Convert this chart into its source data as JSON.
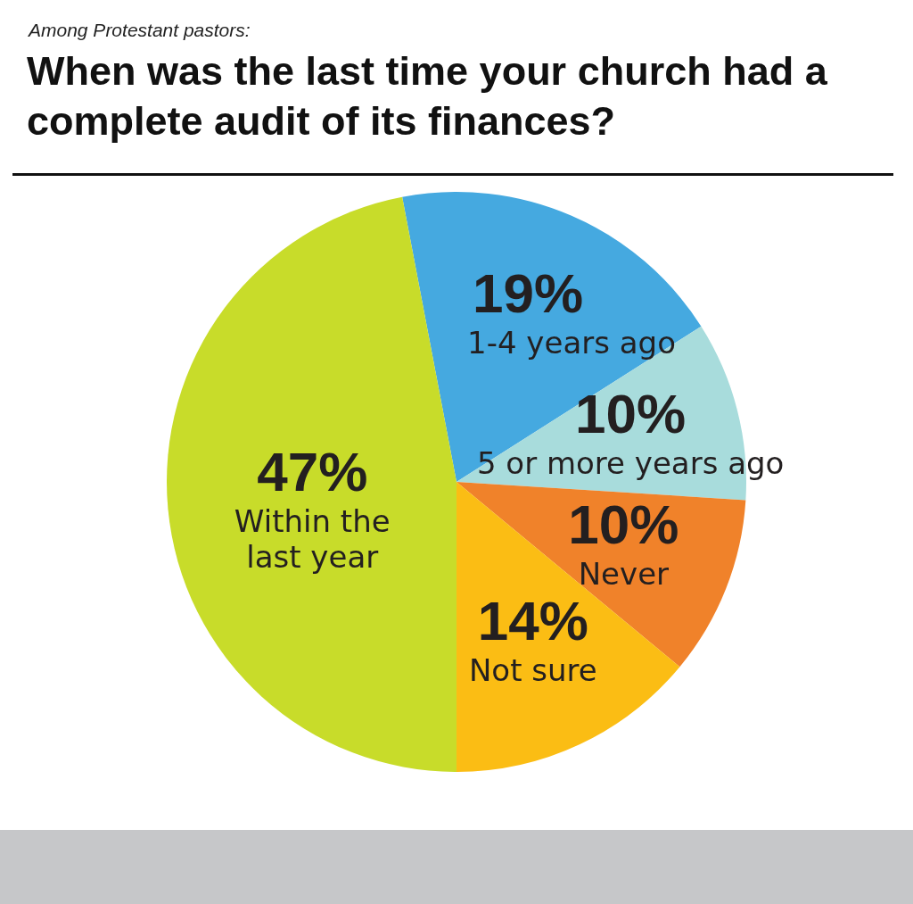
{
  "chart_data": {
    "type": "pie",
    "subtitle": "Among Protestant pastors:",
    "title": "When was the last time your church had a complete audit of its finances?",
    "categories": [
      "1-4 years ago",
      "5 or more years ago",
      "Never",
      "Not sure",
      "Within the last year"
    ],
    "values": [
      19,
      10,
      10,
      14,
      47
    ],
    "value_labels": [
      "19%",
      "10%",
      "10%",
      "14%",
      "47%"
    ],
    "colors": [
      "#45a9e0",
      "#a8dcdc",
      "#f0822a",
      "#fbbd14",
      "#c8dc2a"
    ],
    "legend": false
  }
}
